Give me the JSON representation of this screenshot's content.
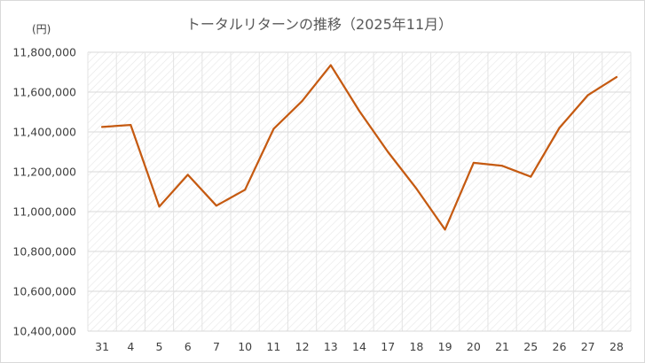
{
  "chart_data": {
    "type": "line",
    "title": "トータルリターンの推移（2025年11月）",
    "unit_label": "(円)",
    "categories": [
      "31",
      "4",
      "5",
      "6",
      "7",
      "10",
      "11",
      "12",
      "13",
      "14",
      "17",
      "18",
      "19",
      "20",
      "21",
      "25",
      "26",
      "27",
      "28"
    ],
    "series": [
      {
        "values": [
          11425000,
          11435000,
          11025000,
          11185000,
          11030000,
          11110000,
          11415000,
          11555000,
          11735000,
          11505000,
          11300000,
          11115000,
          10910000,
          11245000,
          11230000,
          11175000,
          11420000,
          11585000,
          11675000
        ],
        "color": "#c55a11"
      }
    ],
    "ylim": [
      10400000,
      11800000
    ],
    "yticks": [
      10400000,
      10600000,
      10800000,
      11000000,
      11200000,
      11400000,
      11600000,
      11800000
    ],
    "ytick_labels": [
      "10,400,000",
      "10,600,000",
      "10,800,000",
      "11,000,000",
      "11,200,000",
      "11,400,000",
      "11,600,000",
      "11,800,000"
    ],
    "grid": true,
    "legend": false,
    "plot_background": "hatched-light-gray"
  }
}
